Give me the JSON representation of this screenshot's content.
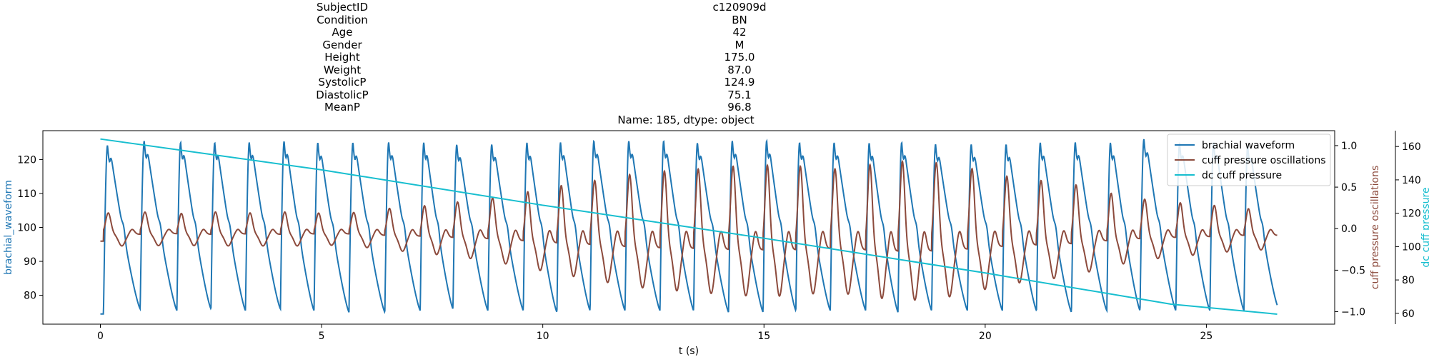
{
  "title": {
    "rows": [
      {
        "label": "SubjectID",
        "value": "c120909d"
      },
      {
        "label": "Condition",
        "value": "BN"
      },
      {
        "label": "Age",
        "value": "42"
      },
      {
        "label": "Gender",
        "value": "M"
      },
      {
        "label": "Height",
        "value": "175.0"
      },
      {
        "label": "Weight",
        "value": "87.0"
      },
      {
        "label": "SystolicP",
        "value": "124.9"
      },
      {
        "label": "DiastolicP",
        "value": "75.1"
      },
      {
        "label": "MeanP",
        "value": "96.8"
      }
    ],
    "footer": "Name: 185, dtype: object"
  },
  "colors": {
    "brachial": "#1f77b4",
    "cuff_osc": "#8c4a3c",
    "dc_cuff": "#17becf"
  },
  "chart_data": {
    "type": "line",
    "xlabel": "t (s)",
    "xlim": [
      -1.3,
      27.9
    ],
    "xticks": [
      0,
      5,
      10,
      15,
      20,
      25
    ],
    "grid": false,
    "legend_position": "top-right",
    "axes": {
      "left": {
        "ylabel": "brachial_waveform",
        "ylim": [
          71.5,
          128.5
        ],
        "ticks": [
          80,
          90,
          100,
          110,
          120
        ]
      },
      "right1": {
        "ylabel": "cuff pressure oscillations",
        "ylim": [
          -1.15,
          1.18
        ],
        "ticks": [
          -1.0,
          -0.5,
          0.0,
          0.5,
          1.0
        ],
        "tick_labels": [
          "−1.0",
          "−0.5",
          "0.0",
          "0.5",
          "1.0"
        ]
      },
      "right2": {
        "ylabel": "dc cuff pressure",
        "ylim": [
          53.5,
          169.5
        ],
        "ticks": [
          60,
          80,
          100,
          120,
          140,
          160
        ]
      }
    },
    "series": [
      {
        "name": "brachial waveform",
        "axis": "left",
        "duration": 26.6,
        "beat_times": [
          0.07,
          0.9,
          1.73,
          2.5,
          3.28,
          4.07,
          4.83,
          5.62,
          6.43,
          7.23,
          7.97,
          8.76,
          9.56,
          10.32,
          11.07,
          11.86,
          12.65,
          13.41,
          14.2,
          14.98,
          15.72,
          16.5,
          17.3,
          18.03,
          18.79,
          19.6,
          20.39,
          21.16,
          21.95,
          22.75,
          23.5,
          24.31,
          25.08,
          25.85
        ],
        "peak_values": [
          124,
          125.5,
          125,
          125,
          125,
          125.5,
          125,
          125,
          125,
          125,
          124.5,
          124.5,
          125,
          125,
          125.5,
          125.5,
          125.5,
          125,
          125.5,
          125.5,
          125,
          125,
          125,
          125,
          124.5,
          124.5,
          124.5,
          125,
          125,
          125,
          126,
          125,
          125,
          124
        ],
        "trough_values": [
          74.5,
          76,
          75.5,
          76,
          75.5,
          76,
          75.5,
          75,
          75,
          75.5,
          76,
          75.5,
          75.5,
          75,
          75.5,
          75.5,
          75.5,
          75.5,
          75,
          75,
          75.5,
          75.5,
          75.5,
          75,
          75.5,
          75.5,
          75.5,
          75.5,
          75,
          75.5,
          75.5,
          75.5,
          75.5,
          75.5
        ],
        "end_value": 76.5
      },
      {
        "name": "cuff pressure oscillations",
        "axis": "right1",
        "duration": 26.6,
        "beat_times": [
          0.07,
          0.9,
          1.73,
          2.5,
          3.28,
          4.07,
          4.83,
          5.62,
          6.43,
          7.23,
          7.97,
          8.76,
          9.56,
          10.32,
          11.07,
          11.86,
          12.65,
          13.41,
          14.2,
          14.98,
          15.72,
          16.5,
          17.3,
          18.03,
          18.79,
          19.6,
          20.39,
          21.16,
          21.95,
          22.75,
          23.5,
          24.31,
          25.08,
          25.85
        ],
        "amplitudes": [
          0.25,
          0.27,
          0.24,
          0.27,
          0.25,
          0.27,
          0.25,
          0.25,
          0.32,
          0.36,
          0.42,
          0.48,
          0.58,
          0.68,
          0.76,
          0.86,
          0.92,
          0.95,
          1.0,
          1.02,
          1.01,
          0.95,
          1.02,
          1.08,
          1.07,
          0.98,
          0.85,
          0.78,
          0.72,
          0.58,
          0.48,
          0.42,
          0.38,
          0.32
        ],
        "end_value": -0.15
      },
      {
        "name": "dc cuff pressure",
        "axis": "right2",
        "x": [
          0,
          5,
          10,
          15,
          20,
          24.2,
          26.6
        ],
        "y": [
          164.5,
          146,
          124.8,
          105,
          84.2,
          65.5,
          59.5
        ]
      }
    ]
  }
}
